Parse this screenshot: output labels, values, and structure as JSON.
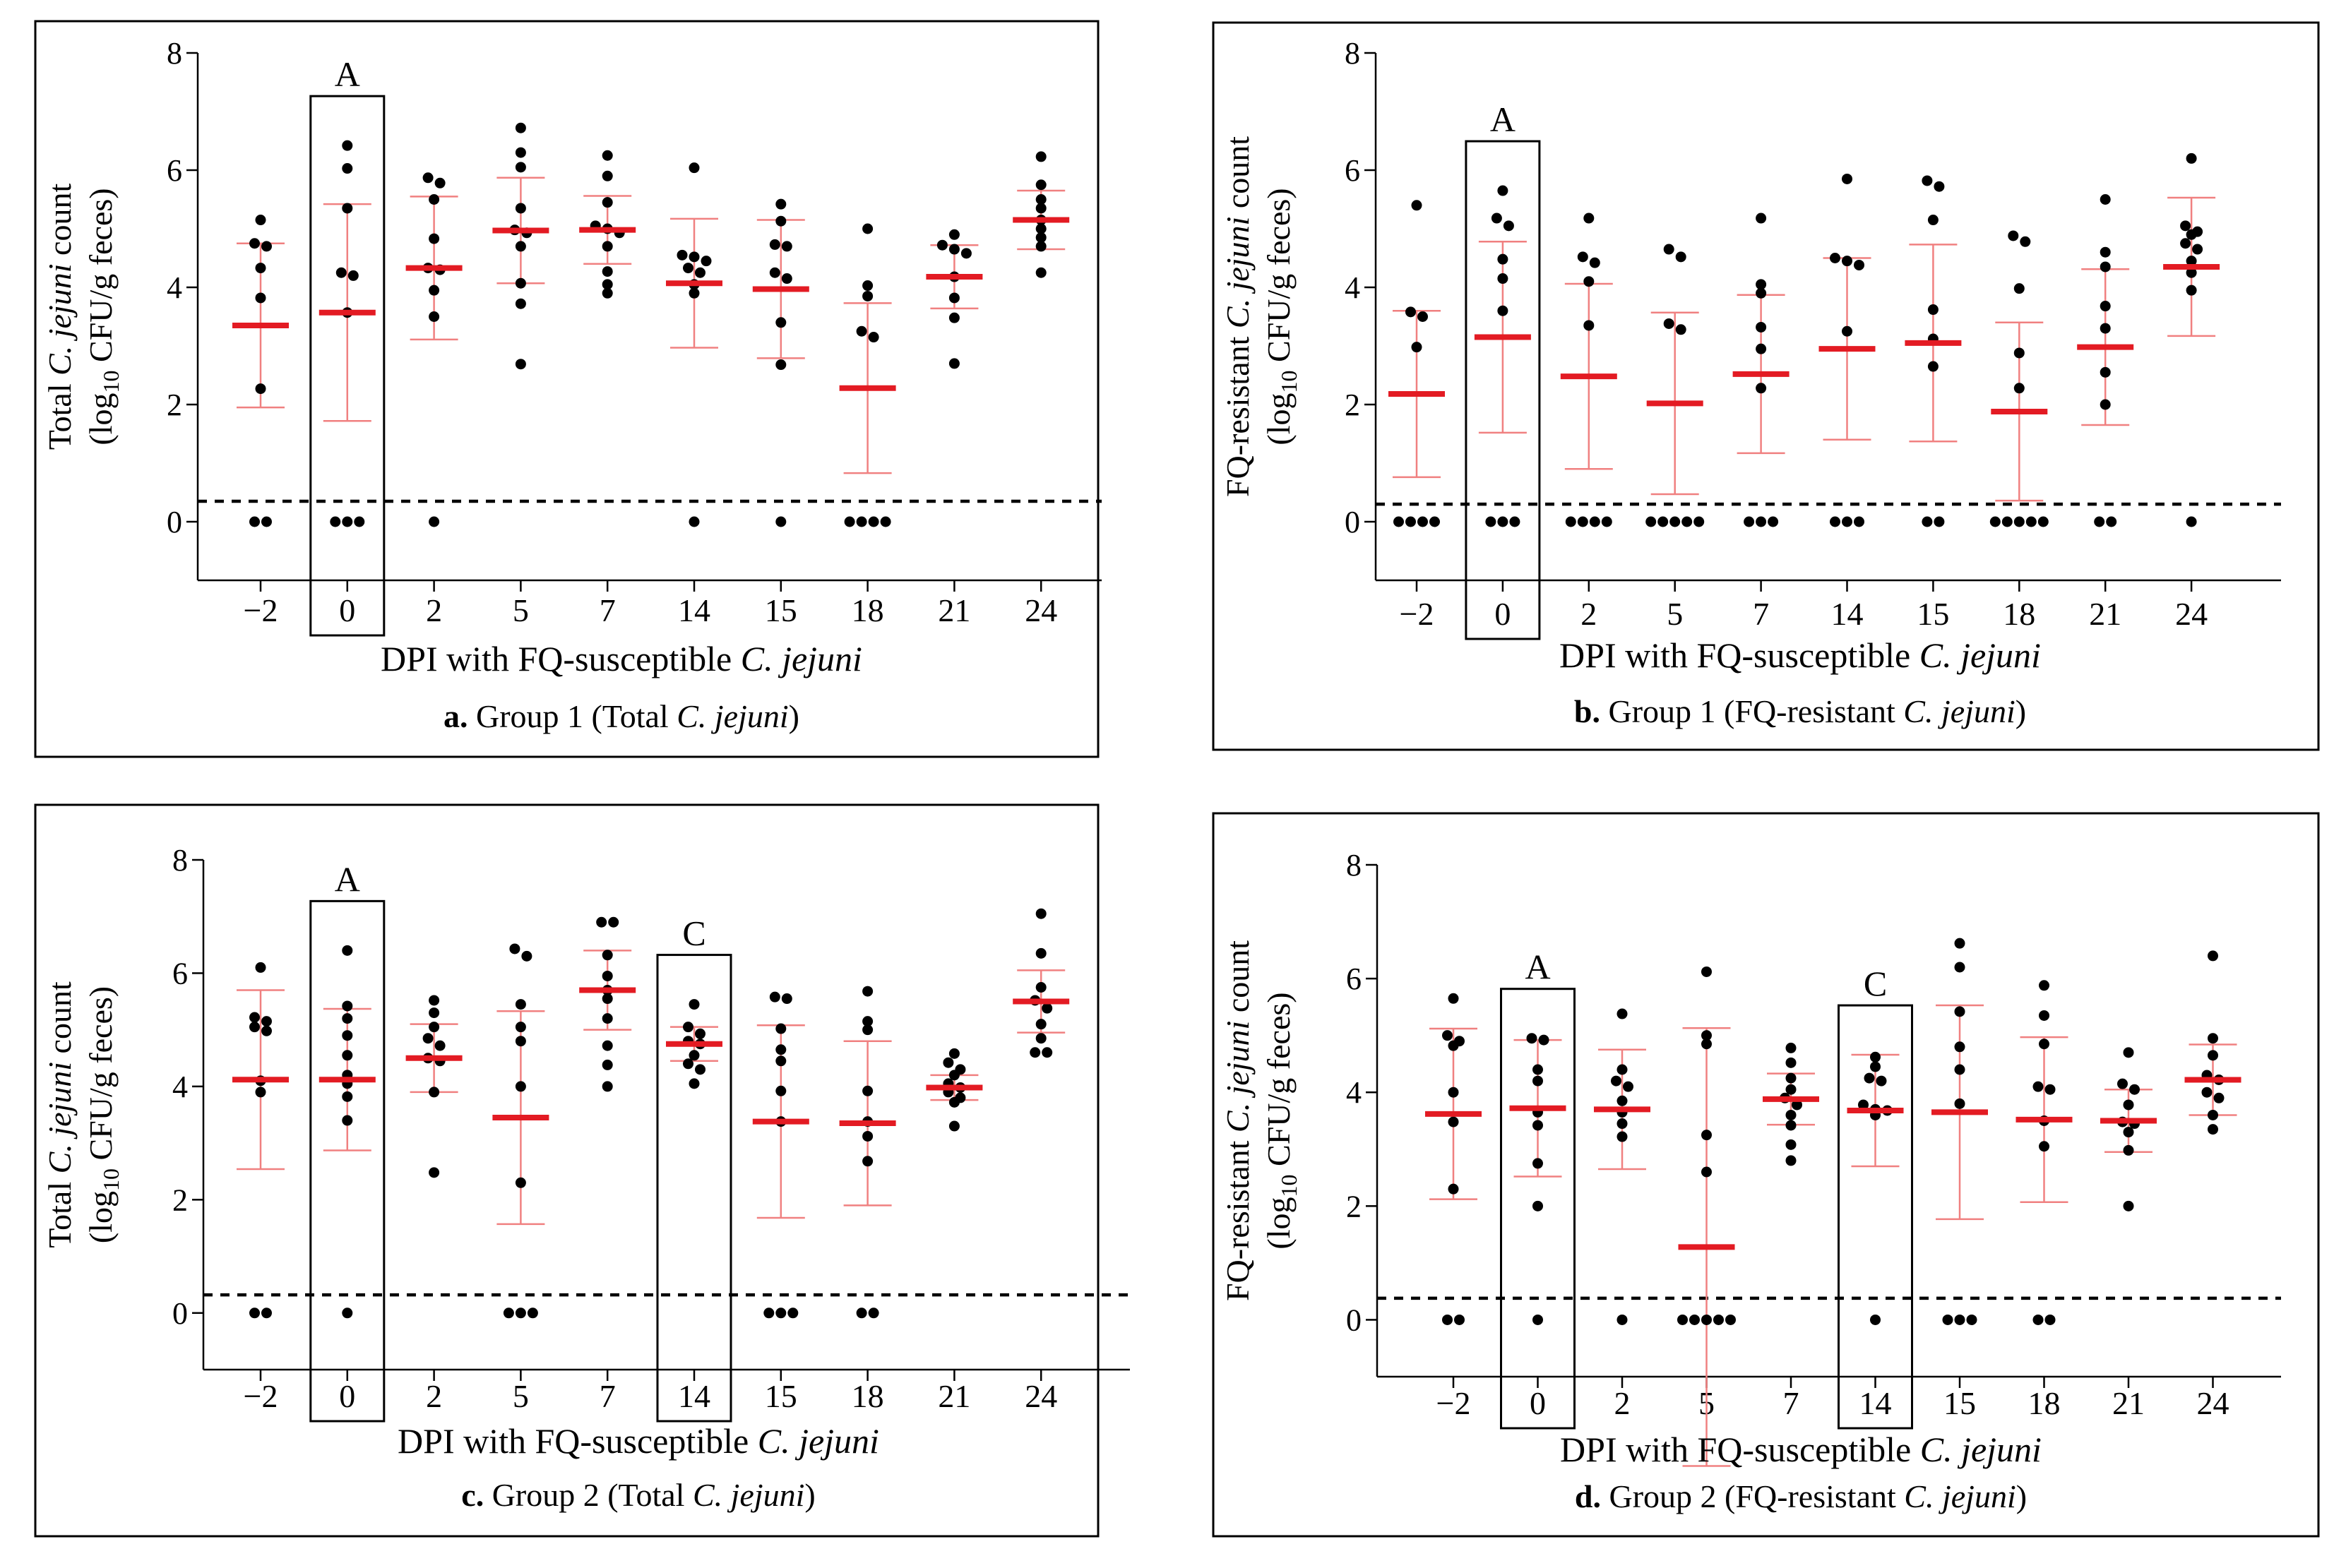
{
  "figure": {
    "x_label_prefix": "DPI with FQ-susceptible ",
    "species_italic": "C. jejuni",
    "ylabel_total_line1": "Total ",
    "ylabel_fq_line1": "FQ-resistant ",
    "ylabel_suffix": " count",
    "ylabel_line2_a": "(log",
    "ylabel_line2_sub": "10",
    "ylabel_line2_b": " CFU/g feces)",
    "colors": {
      "mean": "#e31b23",
      "sd": "#f08080",
      "point": "#000000",
      "frame": "#000000"
    }
  },
  "chart_data": [
    {
      "id": "a",
      "type": "scatter",
      "caption_letter": "a.",
      "caption_text": " Group 1 (Total ",
      "caption_italic": "C. jejuni",
      "caption_end": ")",
      "ylabel_kind": "total",
      "categories": [
        "−2",
        "0",
        "2",
        "5",
        "7",
        "14",
        "15",
        "18",
        "21",
        "24"
      ],
      "ylim": [
        -1,
        8
      ],
      "yticks": [
        0,
        2,
        4,
        6,
        8
      ],
      "detection_limit": 0.35,
      "means": [
        3.35,
        3.57,
        4.33,
        4.97,
        4.98,
        4.07,
        3.97,
        2.28,
        4.18,
        5.15
      ],
      "sd": [
        1.4,
        1.85,
        1.22,
        0.9,
        0.58,
        1.1,
        1.18,
        1.45,
        0.54,
        0.5
      ],
      "points": [
        [
          5.15,
          4.75,
          4.7,
          4.33,
          3.82,
          2.27,
          0,
          0
        ],
        [
          6.42,
          6.03,
          5.35,
          4.25,
          4.2,
          3.57,
          0,
          0,
          0
        ],
        [
          5.87,
          5.78,
          5.5,
          4.83,
          4.33,
          4.3,
          3.95,
          3.5,
          0
        ],
        [
          6.72,
          6.3,
          6.05,
          5.35,
          4.98,
          4.93,
          4.7,
          4.07,
          3.72,
          2.69
        ],
        [
          6.25,
          5.9,
          5.45,
          5.05,
          5.0,
          4.93,
          4.7,
          4.27,
          4.05,
          3.9
        ],
        [
          6.04,
          4.55,
          4.52,
          4.45,
          4.33,
          4.25,
          4.05,
          3.9,
          0
        ],
        [
          5.42,
          5.13,
          4.73,
          4.7,
          4.25,
          4.15,
          3.4,
          2.68,
          0
        ],
        [
          5.0,
          4.03,
          3.85,
          3.25,
          3.15,
          0,
          0,
          0,
          0
        ],
        [
          4.9,
          4.72,
          4.65,
          4.58,
          4.18,
          3.82,
          3.48,
          2.7
        ],
        [
          6.23,
          5.75,
          5.5,
          5.35,
          5.15,
          5.0,
          4.85,
          4.7,
          4.25
        ]
      ],
      "boxed": [
        {
          "index": 1,
          "label": "A"
        }
      ]
    },
    {
      "id": "b",
      "type": "scatter",
      "caption_letter": "b.",
      "caption_text": " Group 1 (FQ-resistant ",
      "caption_italic": "C. jejuni",
      "caption_end": ")",
      "ylabel_kind": "fq",
      "categories": [
        "−2",
        "0",
        "2",
        "5",
        "7",
        "14",
        "15",
        "18",
        "21",
        "24"
      ],
      "ylim": [
        -1,
        8
      ],
      "yticks": [
        0,
        2,
        4,
        6,
        8
      ],
      "detection_limit": 0.3,
      "means": [
        2.18,
        3.15,
        2.48,
        2.02,
        2.52,
        2.95,
        3.05,
        1.88,
        2.98,
        4.35
      ],
      "sd": [
        1.42,
        1.63,
        1.58,
        1.55,
        1.35,
        1.55,
        1.68,
        1.52,
        1.33,
        1.18
      ],
      "points": [
        [
          5.4,
          3.58,
          3.5,
          2.98,
          0,
          0,
          0,
          0
        ],
        [
          5.65,
          5.18,
          5.05,
          4.48,
          4.15,
          3.6,
          0,
          0,
          0
        ],
        [
          5.18,
          4.52,
          4.42,
          4.1,
          3.35,
          0,
          0,
          0,
          0
        ],
        [
          4.65,
          4.52,
          3.38,
          3.28,
          0,
          0,
          0,
          0,
          0
        ],
        [
          5.18,
          4.05,
          3.9,
          3.32,
          2.95,
          2.28,
          0,
          0,
          0
        ],
        [
          5.85,
          4.5,
          4.45,
          4.38,
          3.25,
          0,
          0,
          0
        ],
        [
          5.82,
          5.72,
          5.15,
          3.62,
          3.12,
          2.65,
          0,
          0
        ],
        [
          4.88,
          4.78,
          3.98,
          2.88,
          2.28,
          0,
          0,
          0,
          0,
          0
        ],
        [
          5.5,
          4.6,
          4.35,
          3.68,
          3.3,
          2.55,
          2.0,
          0,
          0
        ],
        [
          6.2,
          5.05,
          4.95,
          4.9,
          4.75,
          4.65,
          4.45,
          4.25,
          3.95,
          0
        ]
      ],
      "boxed": [
        {
          "index": 1,
          "label": "A"
        }
      ]
    },
    {
      "id": "c",
      "type": "scatter",
      "caption_letter": "c.",
      "caption_text": " Group 2 (Total ",
      "caption_italic": "C. jejuni",
      "caption_end": ")",
      "ylabel_kind": "total",
      "categories": [
        "−2",
        "0",
        "2",
        "5",
        "7",
        "14",
        "15",
        "18",
        "21",
        "24"
      ],
      "ylim": [
        -1,
        8
      ],
      "yticks": [
        0,
        2,
        4,
        6,
        8
      ],
      "detection_limit": 0.32,
      "means": [
        4.12,
        4.12,
        4.5,
        3.45,
        5.7,
        4.75,
        3.38,
        3.35,
        3.98,
        5.5
      ],
      "sd": [
        1.58,
        1.25,
        0.6,
        1.88,
        0.7,
        0.3,
        1.7,
        1.45,
        0.22,
        0.55
      ],
      "points": [
        [
          6.1,
          5.22,
          5.15,
          5.05,
          4.98,
          4.1,
          3.9,
          0,
          0
        ],
        [
          6.4,
          5.42,
          5.2,
          4.9,
          4.55,
          4.2,
          4.05,
          3.82,
          3.4,
          0
        ],
        [
          5.52,
          5.3,
          5.05,
          4.85,
          4.72,
          4.5,
          4.45,
          3.9,
          2.48
        ],
        [
          6.43,
          6.3,
          5.45,
          5.05,
          4.8,
          4.0,
          2.3,
          0,
          0,
          0
        ],
        [
          6.9,
          6.9,
          6.32,
          5.95,
          5.7,
          5.55,
          5.2,
          4.72,
          4.38,
          4.0
        ],
        [
          5.45,
          5.05,
          4.93,
          4.8,
          4.75,
          4.55,
          4.4,
          4.3,
          4.05
        ],
        [
          5.58,
          5.55,
          5.02,
          4.65,
          4.45,
          3.92,
          3.38,
          0,
          0,
          0
        ],
        [
          5.68,
          5.15,
          5.0,
          3.92,
          3.38,
          3.12,
          2.68,
          0,
          0
        ],
        [
          4.58,
          4.42,
          4.3,
          4.2,
          4.05,
          3.98,
          3.9,
          3.8,
          3.72,
          3.3
        ],
        [
          7.05,
          6.35,
          5.75,
          5.52,
          5.38,
          5.1,
          4.85,
          4.6,
          4.6
        ]
      ],
      "boxed": [
        {
          "index": 1,
          "label": "A"
        },
        {
          "index": 5,
          "label": "C"
        }
      ]
    },
    {
      "id": "d",
      "type": "scatter",
      "caption_letter": "d.",
      "caption_text": " Group 2 (FQ-resistant ",
      "caption_italic": "C. jejuni",
      "caption_end": ")",
      "ylabel_kind": "fq",
      "categories": [
        "−2",
        "0",
        "2",
        "5",
        "7",
        "14",
        "15",
        "18",
        "21",
        "24"
      ],
      "ylim": [
        -1,
        8
      ],
      "yticks": [
        0,
        2,
        4,
        6,
        8
      ],
      "detection_limit": 0.38,
      "means": [
        3.62,
        3.72,
        3.7,
        1.28,
        3.88,
        3.68,
        3.65,
        3.52,
        3.5,
        4.22
      ],
      "sd": [
        1.5,
        1.2,
        1.05,
        3.85,
        0.45,
        0.98,
        1.88,
        1.45,
        0.55,
        0.62
      ],
      "points": [
        [
          5.65,
          5.0,
          4.9,
          4.82,
          4.0,
          3.48,
          2.3,
          0,
          0
        ],
        [
          4.95,
          4.92,
          4.4,
          4.2,
          3.65,
          3.42,
          2.75,
          2.0,
          0
        ],
        [
          5.38,
          4.4,
          4.2,
          4.1,
          3.85,
          3.65,
          3.45,
          3.22,
          0
        ],
        [
          6.12,
          5.0,
          4.85,
          3.25,
          2.6,
          0,
          0,
          0,
          0,
          0
        ],
        [
          4.78,
          4.52,
          4.25,
          4.05,
          3.9,
          3.78,
          3.6,
          3.42,
          3.08,
          2.8
        ],
        [
          4.62,
          4.45,
          4.25,
          4.2,
          3.78,
          3.7,
          3.68,
          3.6,
          0
        ],
        [
          6.62,
          6.2,
          5.42,
          4.8,
          4.4,
          3.8,
          0,
          0,
          0
        ],
        [
          5.88,
          5.35,
          4.85,
          4.1,
          4.05,
          3.5,
          3.05,
          0,
          0
        ],
        [
          4.7,
          4.15,
          4.05,
          3.78,
          3.48,
          3.45,
          3.3,
          2.98,
          2.0
        ],
        [
          6.4,
          4.95,
          4.65,
          4.3,
          4.22,
          4.0,
          3.9,
          3.6,
          3.35
        ]
      ],
      "boxed": [
        {
          "index": 1,
          "label": "A"
        },
        {
          "index": 5,
          "label": "C"
        }
      ]
    }
  ]
}
